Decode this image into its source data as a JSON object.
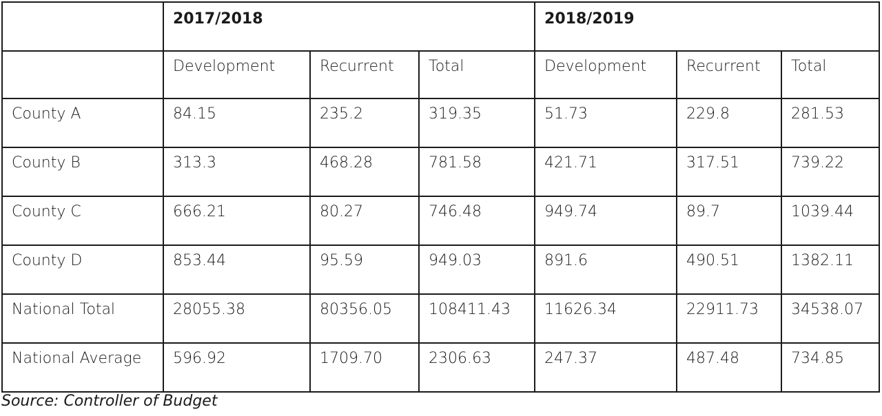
{
  "table": {
    "corner_top": "",
    "corner_sub": "",
    "years": [
      "2017/2018",
      "2018/2019"
    ],
    "subheaders": [
      "Development",
      "Recurrent",
      "Total",
      "Development",
      "Recurrent",
      "Total"
    ],
    "rows": [
      {
        "label": "County A",
        "values": [
          "84.15",
          "235.2",
          "319.35",
          "51.73",
          "229.8",
          "281.53"
        ]
      },
      {
        "label": "County B",
        "values": [
          "313.3",
          "468.28",
          "781.58",
          "421.71",
          "317.51",
          "739.22"
        ]
      },
      {
        "label": "County C",
        "values": [
          "666.21",
          "80.27",
          "746.48",
          "949.74",
          "89.7",
          "1039.44"
        ]
      },
      {
        "label": "County D",
        "values": [
          "853.44",
          "95.59",
          "949.03",
          "891.6",
          "490.51",
          "1382.11"
        ]
      },
      {
        "label": "National Total",
        "values": [
          "28055.38",
          "80356.05",
          "108411.43",
          "11626.34",
          "22911.73",
          "34538.07"
        ]
      },
      {
        "label": "National Average",
        "values": [
          "596.92",
          "1709.70",
          "2306.63",
          "247.37",
          "487.48",
          "734.85"
        ]
      }
    ]
  },
  "source": "Source: Controller of Budget"
}
